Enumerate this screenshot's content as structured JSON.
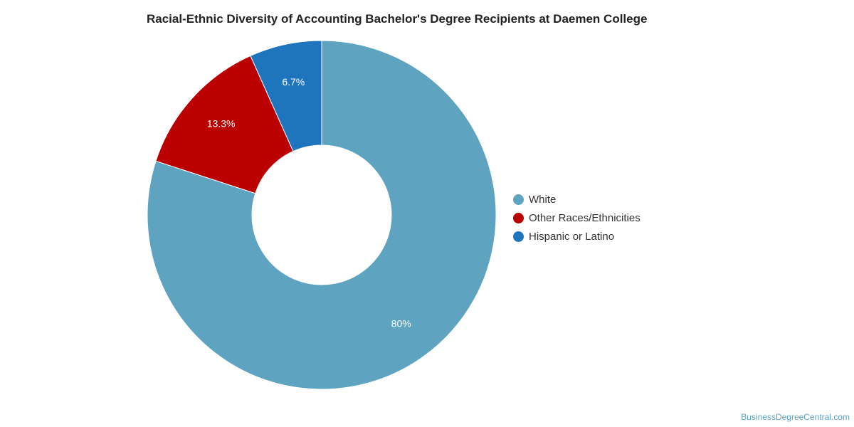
{
  "chart_data": {
    "type": "pie",
    "variant": "donut",
    "title": "Racial-Ethnic Diversity of Accounting Bachelor's Degree Recipients at Daemen College",
    "slices": [
      {
        "label": "White",
        "value": 80,
        "display": "80%",
        "color": "#5ea3c0"
      },
      {
        "label": "Other Races/Ethnicities",
        "value": 13.3,
        "display": "13.3%",
        "color": "#bb0000"
      },
      {
        "label": "Hispanic or Latino",
        "value": 6.7,
        "display": "6.7%",
        "color": "#1f75bd"
      }
    ],
    "legend_position": "right",
    "start_angle": "top",
    "direction": "clockwise"
  },
  "footer": {
    "source": "BusinessDegreeCentral.com"
  }
}
